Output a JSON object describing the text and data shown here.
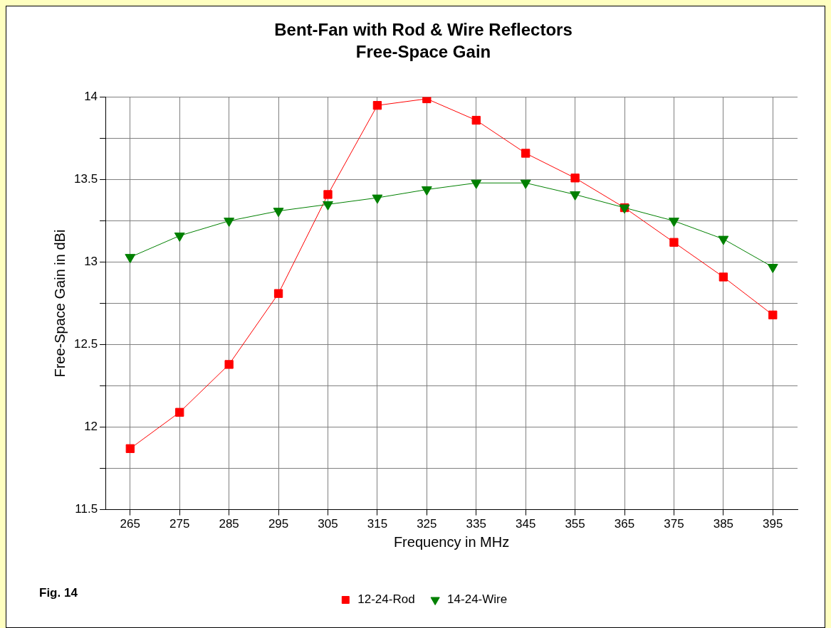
{
  "chart_data": {
    "type": "line",
    "title": "Bent-Fan with Rod & Wire Reflectors",
    "subtitle": "Free-Space Gain",
    "xlabel": "Frequency in MHz",
    "ylabel": "Free-Space Gain in dBi",
    "categories": [
      "265",
      "275",
      "285",
      "295",
      "305",
      "315",
      "325",
      "335",
      "345",
      "355",
      "365",
      "375",
      "385",
      "395"
    ],
    "series": [
      {
        "name": "12-24-Rod",
        "color": "#ff0000",
        "marker": "square",
        "values": [
          11.87,
          12.09,
          12.38,
          12.81,
          13.41,
          13.95,
          13.99,
          13.86,
          13.66,
          13.51,
          13.33,
          13.12,
          12.91,
          12.68
        ]
      },
      {
        "name": "14-24-Wire",
        "color": "#008000",
        "marker": "triangle",
        "values": [
          13.03,
          13.16,
          13.25,
          13.31,
          13.35,
          13.39,
          13.44,
          13.48,
          13.48,
          13.41,
          13.33,
          13.25,
          13.14,
          12.97
        ]
      }
    ],
    "ylim": [
      11.5,
      14
    ],
    "yticks": [
      11.5,
      {
        "value": 11.75,
        "label": null
      },
      12,
      {
        "value": 12.25,
        "label": null
      },
      12.5,
      {
        "value": 12.75,
        "label": null
      },
      13,
      {
        "value": 13.25,
        "label": null
      },
      13.5,
      {
        "value": 13.75,
        "label": null
      },
      14
    ],
    "grid": true,
    "legend": "bottom",
    "line_style": "solid",
    "annotations": [
      "Fig. 14"
    ]
  }
}
